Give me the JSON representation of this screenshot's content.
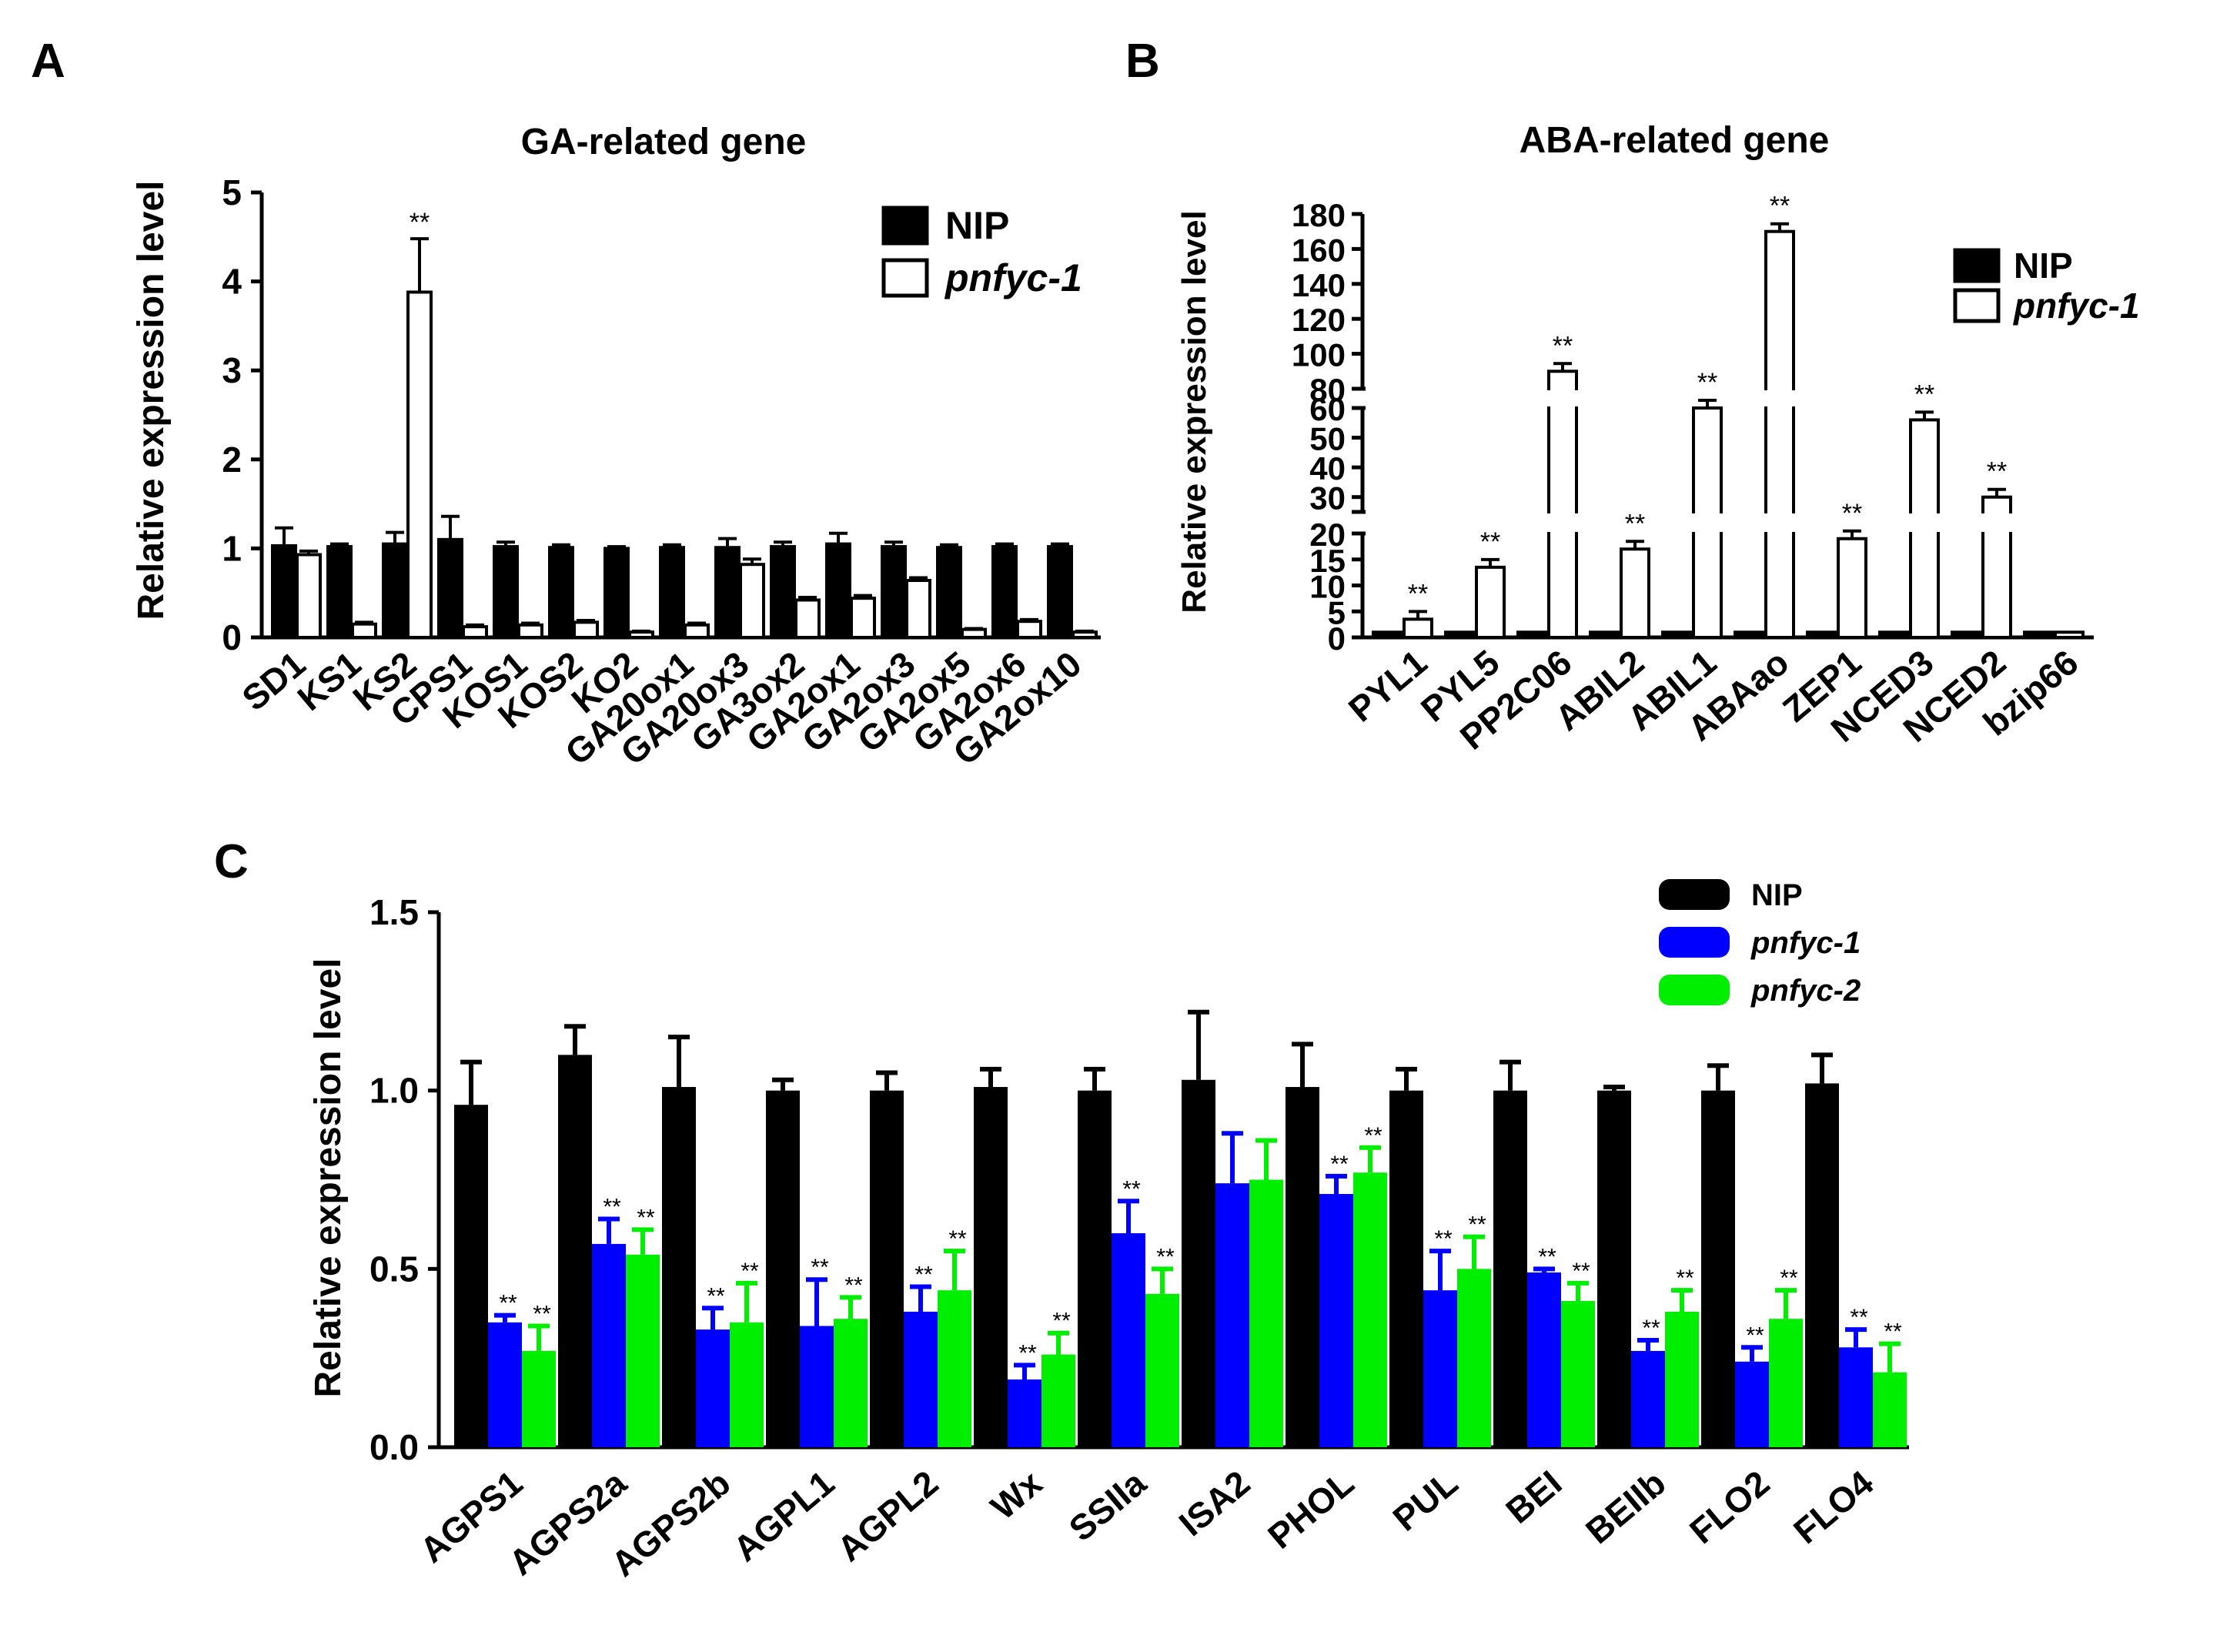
{
  "panels": {
    "A": {
      "label": "A",
      "chart_data": {
        "type": "bar",
        "title": "GA-related gene",
        "xlabel": "",
        "ylabel": "Relative expression level",
        "ylim": [
          0,
          5
        ],
        "yticks": [
          "0",
          "1",
          "2",
          "3",
          "4",
          "5"
        ],
        "categories": [
          "SD1",
          "KS1",
          "KS2",
          "CPS1",
          "KOS1",
          "KOS2",
          "KO2",
          "GA20ox1",
          "GA20ox3",
          "GA3ox2",
          "GA2ox1",
          "GA2ox3",
          "GA2ox5",
          "GA2ox6",
          "GA2ox10"
        ],
        "series": [
          {
            "name": "NIP",
            "color": "#000000",
            "values": [
              1.03,
              1.02,
              1.05,
              1.1,
              1.02,
              1.01,
              1.0,
              1.01,
              1.01,
              1.02,
              1.05,
              1.02,
              1.01,
              1.02,
              1.02
            ],
            "errors": [
              0.2,
              0.03,
              0.13,
              0.26,
              0.05,
              0.03,
              0.02,
              0.03,
              0.1,
              0.05,
              0.12,
              0.05,
              0.03,
              0.03,
              0.03
            ]
          },
          {
            "name": "pnfyc-1",
            "color": "#ffffff",
            "values": [
              0.93,
              0.15,
              3.88,
              0.12,
              0.14,
              0.17,
              0.06,
              0.14,
              0.82,
              0.42,
              0.44,
              0.64,
              0.09,
              0.18,
              0.06
            ],
            "errors": [
              0.04,
              0.02,
              0.6,
              0.02,
              0.02,
              0.02,
              0.01,
              0.02,
              0.06,
              0.03,
              0.03,
              0.03,
              0.01,
              0.02,
              0.01
            ]
          }
        ],
        "significance": [
          {
            "category": "KS2",
            "series": "pnfyc-1",
            "label": "**"
          }
        ],
        "legend": "top-right"
      }
    },
    "B": {
      "label": "B",
      "chart_data": {
        "type": "bar",
        "title": "ABA-related gene",
        "xlabel": "",
        "ylabel": "Relative expression level",
        "axis_breaks": true,
        "y_segments": [
          {
            "range": [
              0,
              20
            ],
            "ticks": [
              "0",
              "5",
              "10",
              "15",
              "20"
            ]
          },
          {
            "range": [
              25,
              60
            ],
            "ticks": [
              "30",
              "40",
              "50",
              "60"
            ]
          },
          {
            "range": [
              80,
              180
            ],
            "ticks": [
              "80",
              "100",
              "120",
              "140",
              "160",
              "180"
            ]
          }
        ],
        "categories": [
          "PYL1",
          "PYL5",
          "PP2C06",
          "ABIL2",
          "ABIL1",
          "ABAao",
          "ZEP1",
          "NCED3",
          "NCED2",
          "bzip66"
        ],
        "series": [
          {
            "name": "NIP",
            "color": "#000000",
            "values": [
              1,
              1,
              1,
              1,
              1,
              1,
              1,
              1,
              1,
              1
            ]
          },
          {
            "name": "pnfyc-1",
            "color": "#ffffff",
            "values": [
              3.5,
              13.5,
              90,
              17,
              60,
              170,
              19,
              56,
              30,
              1
            ]
          }
        ],
        "significance": [
          {
            "category": "PYL1",
            "label": "**"
          },
          {
            "category": "PYL5",
            "label": "**"
          },
          {
            "category": "PP2C06",
            "label": "**"
          },
          {
            "category": "ABIL2",
            "label": "**"
          },
          {
            "category": "ABIL1",
            "label": "**"
          },
          {
            "category": "ABAao",
            "label": "**"
          },
          {
            "category": "ZEP1",
            "label": "**"
          },
          {
            "category": "NCED3",
            "label": "**"
          },
          {
            "category": "NCED2",
            "label": "**"
          }
        ],
        "legend": "top-right"
      }
    },
    "C": {
      "label": "C",
      "chart_data": {
        "type": "bar",
        "title": "",
        "xlabel": "",
        "ylabel": "Relative expression level",
        "ylim": [
          0,
          1.5
        ],
        "yticks": [
          "0.0",
          "0.5",
          "1.0",
          "1.5"
        ],
        "categories": [
          "AGPS1",
          "AGPS2a",
          "AGPS2b",
          "AGPL1",
          "AGPL2",
          "Wx",
          "SSIIa",
          "ISA2",
          "PHOL",
          "PUL",
          "BEI",
          "BEIIb",
          "FLO2",
          "FLO4"
        ],
        "series": [
          {
            "name": "NIP",
            "color": "#000000",
            "values": [
              0.96,
              1.1,
              1.01,
              1.0,
              1.0,
              1.01,
              1.0,
              1.03,
              1.01,
              1.0,
              1.0,
              1.0,
              1.0,
              1.02
            ],
            "errors": [
              0.12,
              0.08,
              0.14,
              0.03,
              0.05,
              0.05,
              0.06,
              0.19,
              0.12,
              0.06,
              0.08,
              0.01,
              0.07,
              0.08
            ]
          },
          {
            "name": "pnfyc-1",
            "color": "#0000ff",
            "values": [
              0.35,
              0.57,
              0.33,
              0.34,
              0.38,
              0.19,
              0.6,
              0.74,
              0.71,
              0.44,
              0.49,
              0.27,
              0.24,
              0.28
            ],
            "errors": [
              0.02,
              0.07,
              0.06,
              0.13,
              0.07,
              0.04,
              0.09,
              0.14,
              0.05,
              0.11,
              0.01,
              0.03,
              0.04,
              0.05
            ]
          },
          {
            "name": "pnfyc-2",
            "color": "#00ee00",
            "values": [
              0.27,
              0.54,
              0.35,
              0.36,
              0.44,
              0.26,
              0.43,
              0.75,
              0.77,
              0.5,
              0.41,
              0.38,
              0.36,
              0.21
            ],
            "errors": [
              0.07,
              0.07,
              0.11,
              0.06,
              0.11,
              0.06,
              0.07,
              0.11,
              0.07,
              0.09,
              0.05,
              0.06,
              0.08,
              0.08
            ]
          }
        ],
        "significance_categories": [
          "AGPS1",
          "AGPS2a",
          "AGPS2b",
          "AGPL1",
          "AGPL2",
          "Wx",
          "SSIIa",
          "PHOL",
          "PUL",
          "BEI",
          "BEIIb",
          "FLO2",
          "FLO4"
        ],
        "significance_label": "**",
        "legend": "top-right"
      }
    }
  }
}
